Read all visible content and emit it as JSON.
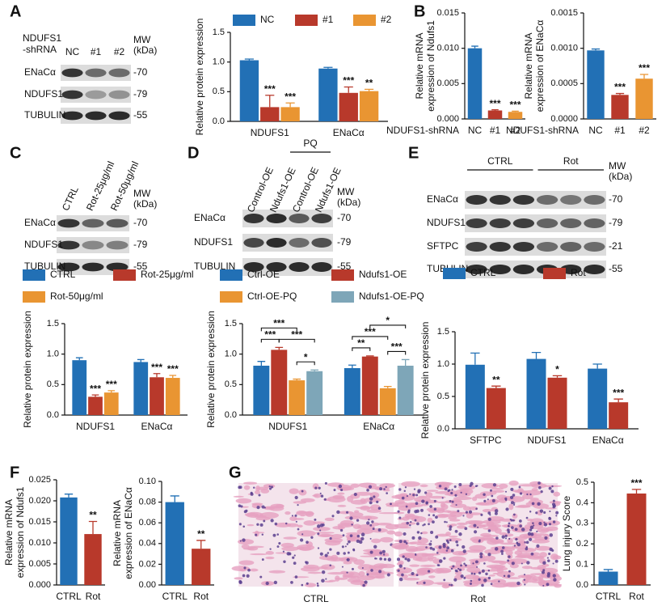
{
  "panel_letters": [
    "A",
    "B",
    "C",
    "D",
    "E",
    "F",
    "G"
  ],
  "blots": [
    {
      "header": [
        "NDUFS1",
        "-shRNA"
      ],
      "lanes": [
        "NC",
        "#1",
        "#2"
      ],
      "mw_header": [
        "MW",
        "(kDa)"
      ],
      "rows": [
        {
          "label": "ENaCα",
          "mw": "-70"
        },
        {
          "label": "NDUFS1",
          "mw": "-79"
        },
        {
          "label": "TUBULIN",
          "mw": "-55"
        }
      ]
    },
    {
      "lanes": [
        "CTRL",
        "Rot-25μg/ml",
        "Rot-50μg/ml"
      ],
      "mw_header": [
        "MW",
        "(kDa)"
      ],
      "rows": [
        {
          "label": "ENaCα",
          "mw": "-70"
        },
        {
          "label": "NDUFS1",
          "mw": "-79"
        },
        {
          "label": "TUBULIN",
          "mw": "-55"
        }
      ]
    },
    {
      "lanes": [
        "Control-OE",
        "Ndufs1-OE",
        "Control-OE",
        "Ndufs1-OE"
      ],
      "groups": [
        {
          "label": "PQ"
        }
      ],
      "mw_header": [
        "MW",
        "(kDa)"
      ],
      "rows": [
        {
          "label": "ENaCα",
          "mw": "-70"
        },
        {
          "label": "NDUFS1",
          "mw": "-79"
        },
        {
          "label": "TUBULIN",
          "mw": "-55"
        }
      ]
    },
    {
      "groups": [
        {
          "label": "CTRL"
        },
        {
          "label": "Rot"
        }
      ],
      "mw_header": [
        "MW",
        "(kDa)"
      ],
      "rows": [
        {
          "label": "ENaCα",
          "mw": "-70"
        },
        {
          "label": "NDUFS1",
          "mw": "-79"
        },
        {
          "label": "SFTPC",
          "mw": "-21"
        },
        {
          "label": "TUBULIN",
          "mw": "-55"
        }
      ]
    }
  ],
  "micrographs": {
    "labels": [
      "CTRL",
      "Rot"
    ]
  },
  "chart_data": [
    {
      "type": "bar",
      "ylabel": [
        "Relative protein expression"
      ],
      "categories": [
        "NDUFS1",
        "ENaCα"
      ],
      "series": [
        {
          "name": "NC",
          "color": "#2270b5",
          "values": [
            1.03,
            0.89
          ],
          "errors": [
            0.02,
            0.02
          ],
          "significance": [
            null,
            null
          ]
        },
        {
          "name": "#1",
          "color": "#b8392b",
          "values": [
            0.24,
            0.48
          ],
          "errors": [
            0.2,
            0.1
          ],
          "significance": [
            "***",
            "***"
          ]
        },
        {
          "name": "#2",
          "color": "#e99532",
          "values": [
            0.24,
            0.51
          ],
          "errors": [
            0.07,
            0.03
          ],
          "significance": [
            "***",
            "**"
          ]
        }
      ],
      "ylim": [
        0,
        1.5
      ],
      "yticks": [
        {
          "value": 0,
          "label": "0.0"
        },
        0.5,
        {
          "value": 1,
          "label": "1.0"
        },
        1.5
      ]
    },
    {
      "type": "bar",
      "ylabel": [
        "Relative mRNA",
        "expression of Ndufs1"
      ],
      "xlabel": "NDUFS1-shRNA",
      "categories": [
        "NC",
        "#1",
        "#2"
      ],
      "values": [
        0.01,
        0.0012,
        0.001
      ],
      "errors": [
        0.0003,
        0.0001,
        0.0001
      ],
      "colors": [
        "#2270b5",
        "#b8392b",
        "#e99532"
      ],
      "significance": [
        null,
        "***",
        "***"
      ],
      "ylim": [
        0,
        0.015
      ],
      "yticks": [
        {
          "value": 0,
          "label": "0.000"
        },
        0.005,
        {
          "value": 0.01,
          "label": "0.010"
        },
        0.015
      ]
    },
    {
      "type": "bar",
      "ylabel": [
        "Relative mRNA",
        "expression of ENaCα"
      ],
      "xlabel": "NDUFS1-shRNA",
      "categories": [
        "NC",
        "#1",
        "#2"
      ],
      "values": [
        0.00097,
        0.00034,
        0.00057
      ],
      "errors": [
        2e-05,
        2e-05,
        6e-05
      ],
      "colors": [
        "#2270b5",
        "#b8392b",
        "#e99532"
      ],
      "significance": [
        null,
        "***",
        "***"
      ],
      "ylim": [
        0,
        0.0015
      ],
      "yticks": [
        {
          "value": 0,
          "label": "0.0000"
        },
        0.0005,
        {
          "value": 0.001,
          "label": "0.0010"
        },
        0.0015
      ]
    },
    {
      "type": "bar",
      "ylabel": [
        "Relative protein expression"
      ],
      "categories": [
        "NDUFS1",
        "ENaCα"
      ],
      "series": [
        {
          "name": "CTRL",
          "color": "#2270b5",
          "values": [
            0.9,
            0.87
          ],
          "errors": [
            0.04,
            0.04
          ],
          "significance": [
            null,
            null
          ]
        },
        {
          "name": "Rot-25μg/ml",
          "color": "#b8392b",
          "values": [
            0.3,
            0.62
          ],
          "errors": [
            0.03,
            0.06
          ],
          "significance": [
            "***",
            "***"
          ]
        },
        {
          "name": "Rot-50μg/ml",
          "color": "#e99532",
          "values": [
            0.37,
            0.61
          ],
          "errors": [
            0.03,
            0.04
          ],
          "significance": [
            "***",
            "***"
          ]
        }
      ],
      "ylim": [
        0,
        1.5
      ],
      "yticks": [
        {
          "value": 0,
          "label": "0.0"
        },
        0.5,
        {
          "value": 1,
          "label": "1.0"
        },
        1.5
      ]
    },
    {
      "type": "bar",
      "ylabel": [
        "Relative protein expression"
      ],
      "categories": [
        "NDUFS1",
        "ENaCα"
      ],
      "series": [
        {
          "name": "Ctrl-OE",
          "color": "#2270b5",
          "values": [
            0.81,
            0.77
          ],
          "errors": [
            0.07,
            0.05
          ]
        },
        {
          "name": "Ndufs1-OE",
          "color": "#b8392b",
          "values": [
            1.07,
            0.96
          ],
          "errors": [
            0.04,
            0.01
          ]
        },
        {
          "name": "Ctrl-OE-PQ",
          "color": "#e99532",
          "values": [
            0.57,
            0.44
          ],
          "errors": [
            0.02,
            0.03
          ]
        },
        {
          "name": "Ndufs1-OE-PQ",
          "color": "#7ea6b8",
          "values": [
            0.72,
            0.81
          ],
          "errors": [
            0.02,
            0.1
          ]
        }
      ],
      "comparisons": [
        {
          "category": "NDUFS1",
          "pair": [
            "Ctrl-OE",
            "Ndufs1-OE"
          ],
          "label": "***"
        },
        {
          "category": "NDUFS1",
          "pair": [
            "Ctrl-OE-PQ",
            "Ndufs1-OE-PQ"
          ],
          "label": "*"
        },
        {
          "category": "NDUFS1",
          "pair": [
            "Ctrl-OE",
            "Ctrl-OE-PQ"
          ],
          "label": "***"
        },
        {
          "category": "NDUFS1",
          "pair": [
            "Ndufs1-OE",
            "Ndufs1-OE-PQ"
          ],
          "label": "***"
        },
        {
          "category": "ENaCα",
          "pair": [
            "Ctrl-OE",
            "Ndufs1-OE"
          ],
          "label": "**"
        },
        {
          "category": "ENaCα",
          "pair": [
            "Ctrl-OE-PQ",
            "Ndufs1-OE-PQ"
          ],
          "label": "***"
        },
        {
          "category": "ENaCα",
          "pair": [
            "Ctrl-OE",
            "Ctrl-OE-PQ"
          ],
          "label": "***"
        },
        {
          "category": "ENaCα",
          "pair": [
            "Ndufs1-OE",
            "Ndufs1-OE-PQ"
          ],
          "label": "*"
        }
      ],
      "ylim": [
        0,
        1.5
      ],
      "yticks": [
        {
          "value": 0,
          "label": "0.0"
        },
        0.5,
        {
          "value": 1,
          "label": "1.0"
        },
        1.5
      ]
    },
    {
      "type": "bar",
      "ylabel": [
        "Relative protein expression"
      ],
      "categories": [
        "SFTPC",
        "NDUFS1",
        "ENaCα"
      ],
      "series": [
        {
          "name": "CTRL",
          "color": "#2270b5",
          "values": [
            0.99,
            1.08,
            0.93
          ],
          "errors": [
            0.18,
            0.1,
            0.07
          ],
          "significance": [
            null,
            null,
            null
          ]
        },
        {
          "name": "Rot",
          "color": "#b8392b",
          "values": [
            0.63,
            0.79,
            0.41
          ],
          "errors": [
            0.03,
            0.03,
            0.05
          ],
          "significance": [
            "**",
            "*",
            "***"
          ]
        }
      ],
      "ylim": [
        0,
        1.5
      ],
      "yticks": [
        {
          "value": 0,
          "label": "0.0"
        },
        0.5,
        {
          "value": 1,
          "label": "1.0"
        },
        1.5
      ]
    },
    {
      "type": "bar",
      "ylabel": [
        "Relative mRNA",
        "expression of Ndufs1"
      ],
      "categories": [
        "CTRL",
        "Rot"
      ],
      "values": [
        0.0208,
        0.0121
      ],
      "errors": [
        0.0008,
        0.003
      ],
      "colors": [
        "#2270b5",
        "#b8392b"
      ],
      "significance": [
        null,
        "**"
      ],
      "ylim": [
        0,
        0.025
      ],
      "yticks": [
        {
          "value": 0,
          "label": "0.000"
        },
        0.005,
        {
          "value": 0.01,
          "label": "0.010"
        },
        0.015,
        {
          "value": 0.02,
          "label": "0.020"
        },
        0.025
      ]
    },
    {
      "type": "bar",
      "ylabel": [
        "Relative mRNA",
        "expression of ENaCα"
      ],
      "categories": [
        "CTRL",
        "Rot"
      ],
      "values": [
        0.08,
        0.035
      ],
      "errors": [
        0.006,
        0.008
      ],
      "colors": [
        "#2270b5",
        "#b8392b"
      ],
      "significance": [
        null,
        "**"
      ],
      "ylim": [
        0,
        0.1
      ],
      "yticks": [
        {
          "value": 0,
          "label": "0.00"
        },
        0.02,
        0.04,
        0.06,
        0.08,
        {
          "value": 0.1,
          "label": "0.10"
        }
      ]
    },
    {
      "type": "bar",
      "ylabel": [
        "Lung injury Score"
      ],
      "categories": [
        "CTRL",
        "Rot"
      ],
      "values": [
        0.065,
        0.445
      ],
      "errors": [
        0.01,
        0.02
      ],
      "colors": [
        "#2270b5",
        "#b8392b"
      ],
      "significance": [
        null,
        "***"
      ],
      "ylim": [
        0,
        0.5
      ],
      "yticks": [
        {
          "value": 0,
          "label": "0.0"
        },
        0.1,
        0.2,
        0.3,
        0.4,
        0.5
      ]
    }
  ]
}
